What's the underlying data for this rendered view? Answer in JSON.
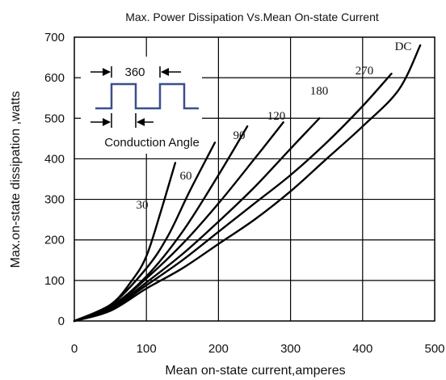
{
  "chart_data": {
    "type": "line",
    "title": "Max. Power Dissipation Vs.Mean On-state Current",
    "xlabel": "Mean on-state current,amperes",
    "ylabel": "Max.on-state dissipation ,watts",
    "xlim": [
      0,
      500
    ],
    "ylim": [
      0,
      700
    ],
    "xticks": [
      "0",
      "100",
      "200",
      "300",
      "400",
      "500"
    ],
    "yticks": [
      "0",
      "100",
      "200",
      "300",
      "400",
      "500",
      "600",
      "700"
    ],
    "grid": true,
    "series": [
      {
        "name": "30",
        "points": [
          [
            0,
            0
          ],
          [
            50,
            40
          ],
          [
            80,
            100
          ],
          [
            100,
            160
          ],
          [
            120,
            270
          ],
          [
            140,
            390
          ]
        ]
      },
      {
        "name": "60",
        "points": [
          [
            0,
            0
          ],
          [
            50,
            38
          ],
          [
            100,
            130
          ],
          [
            130,
            210
          ],
          [
            160,
            320
          ],
          [
            195,
            440
          ]
        ]
      },
      {
        "name": "90",
        "points": [
          [
            0,
            0
          ],
          [
            50,
            35
          ],
          [
            100,
            110
          ],
          [
            150,
            220
          ],
          [
            200,
            360
          ],
          [
            240,
            480
          ]
        ]
      },
      {
        "name": "120",
        "points": [
          [
            0,
            0
          ],
          [
            50,
            32
          ],
          [
            100,
            105
          ],
          [
            150,
            190
          ],
          [
            200,
            290
          ],
          [
            250,
            400
          ],
          [
            290,
            490
          ]
        ]
      },
      {
        "name": "180",
        "points": [
          [
            0,
            0
          ],
          [
            50,
            30
          ],
          [
            100,
            95
          ],
          [
            150,
            165
          ],
          [
            200,
            245
          ],
          [
            250,
            330
          ],
          [
            300,
            425
          ],
          [
            340,
            500
          ]
        ]
      },
      {
        "name": "270",
        "points": [
          [
            0,
            0
          ],
          [
            50,
            28
          ],
          [
            100,
            88
          ],
          [
            150,
            150
          ],
          [
            200,
            220
          ],
          [
            250,
            290
          ],
          [
            300,
            360
          ],
          [
            350,
            440
          ],
          [
            400,
            530
          ],
          [
            440,
            610
          ]
        ]
      },
      {
        "name": "DC",
        "points": [
          [
            0,
            0
          ],
          [
            50,
            25
          ],
          [
            100,
            80
          ],
          [
            150,
            130
          ],
          [
            200,
            190
          ],
          [
            250,
            250
          ],
          [
            300,
            320
          ],
          [
            350,
            400
          ],
          [
            400,
            480
          ],
          [
            450,
            570
          ],
          [
            480,
            680
          ]
        ]
      }
    ],
    "inset": {
      "top_label": "360",
      "caption": "Conduction Angle"
    }
  }
}
